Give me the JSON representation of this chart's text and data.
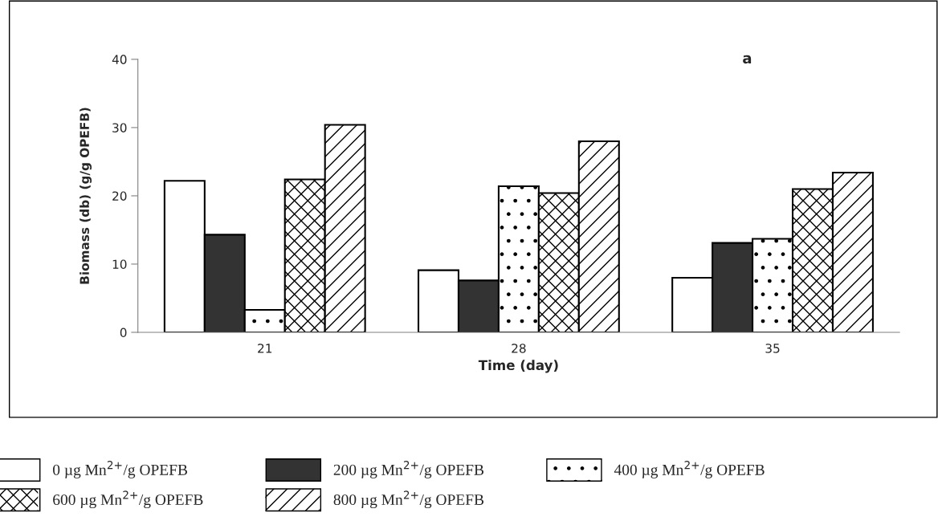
{
  "chart_data": {
    "type": "bar",
    "title": "a",
    "xlabel": "Time (day)",
    "ylabel": "Biomass (db) (g/g OPEFB)",
    "categories": [
      "21",
      "28",
      "35"
    ],
    "series": [
      {
        "name": "0 µg Mn$^{2+}$/g OPEFB",
        "color": "#ffffff",
        "values": [
          22.2,
          9.1,
          8.0
        ]
      },
      {
        "name": "200 µg Mn$^{2+}$/g OPEFB",
        "color": "#333333",
        "values": [
          14.3,
          7.6,
          13.1
        ]
      },
      {
        "name": "400 µg Mn$^{2+}$/g OPEFB",
        "color": "#ffffff",
        "values": [
          3.3,
          21.4,
          13.7
        ]
      },
      {
        "name": "600 µg Mn$^{2+}$/g OPEFB",
        "color": "#ffffff",
        "values": [
          22.4,
          20.4,
          21.0
        ]
      },
      {
        "name": "800 µg Mn$^{2+}$/g OPEFB",
        "color": "#ffffff",
        "values": [
          30.4,
          28.0,
          23.4
        ]
      }
    ],
    "ylim": [
      0,
      40
    ],
    "yticks": [
      0,
      10,
      20,
      30,
      40
    ],
    "grid": false,
    "legend": "bottom"
  }
}
